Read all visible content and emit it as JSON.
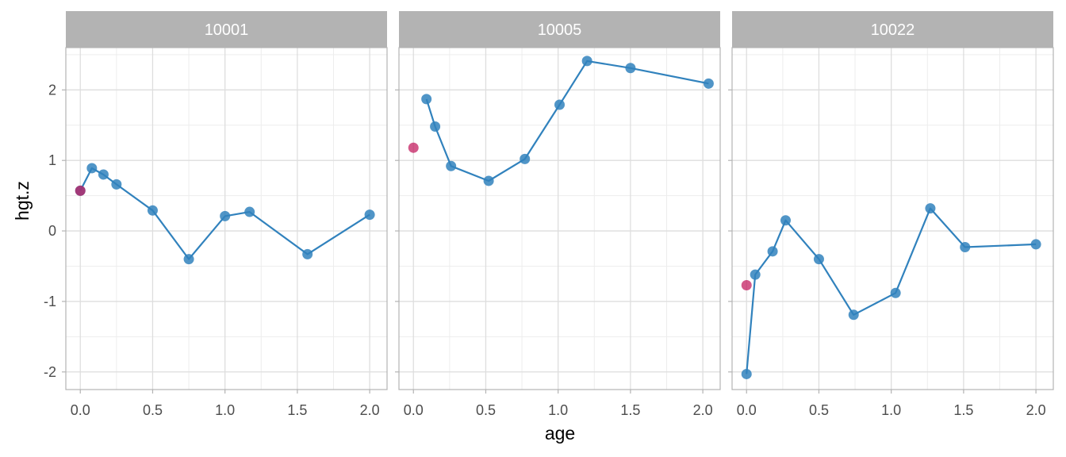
{
  "chart_data": {
    "type": "line",
    "xlabel": "age",
    "ylabel": "hgt.z",
    "xlim": [
      -0.1,
      2.12
    ],
    "ylim": [
      -2.25,
      2.6
    ],
    "x_ticks": [
      0,
      0.5,
      1,
      1.5,
      2
    ],
    "x_tick_labels": [
      "0.0",
      "0.5",
      "1.0",
      "1.5",
      "2.0"
    ],
    "y_ticks": [
      -2,
      -1,
      0,
      1,
      2
    ],
    "y_tick_labels": [
      "-2",
      "-1",
      "0",
      "1",
      "2"
    ],
    "grid": true,
    "line_color": "#3182bd",
    "point_color": "#3182bd",
    "highlight_color": "#c2185b",
    "strip_color": "#b3b3b3",
    "panels": [
      {
        "label": "10001",
        "points": [
          {
            "x": 0.0,
            "y": 0.57
          },
          {
            "x": 0.08,
            "y": 0.89
          },
          {
            "x": 0.16,
            "y": 0.8
          },
          {
            "x": 0.25,
            "y": 0.66
          },
          {
            "x": 0.5,
            "y": 0.29
          },
          {
            "x": 0.75,
            "y": -0.4
          },
          {
            "x": 1.0,
            "y": 0.21
          },
          {
            "x": 1.17,
            "y": 0.27
          },
          {
            "x": 1.57,
            "y": -0.33
          },
          {
            "x": 2.0,
            "y": 0.23
          }
        ],
        "highlight": {
          "x": 0.0,
          "y": 0.57
        }
      },
      {
        "label": "10005",
        "points": [
          {
            "x": 0.09,
            "y": 1.87
          },
          {
            "x": 0.15,
            "y": 1.48
          },
          {
            "x": 0.26,
            "y": 0.92
          },
          {
            "x": 0.52,
            "y": 0.71
          },
          {
            "x": 0.77,
            "y": 1.02
          },
          {
            "x": 1.01,
            "y": 1.79
          },
          {
            "x": 1.2,
            "y": 2.41
          },
          {
            "x": 1.5,
            "y": 2.31
          },
          {
            "x": 2.04,
            "y": 2.09
          }
        ],
        "highlight": {
          "x": 0.0,
          "y": 1.18
        }
      },
      {
        "label": "10022",
        "points": [
          {
            "x": 0.0,
            "y": -2.03
          },
          {
            "x": 0.06,
            "y": -0.62
          },
          {
            "x": 0.18,
            "y": -0.29
          },
          {
            "x": 0.27,
            "y": 0.15
          },
          {
            "x": 0.5,
            "y": -0.4
          },
          {
            "x": 0.74,
            "y": -1.19
          },
          {
            "x": 1.03,
            "y": -0.88
          },
          {
            "x": 1.27,
            "y": 0.32
          },
          {
            "x": 1.51,
            "y": -0.23
          },
          {
            "x": 2.0,
            "y": -0.19
          }
        ],
        "highlight": {
          "x": 0.0,
          "y": -0.77
        }
      }
    ]
  }
}
